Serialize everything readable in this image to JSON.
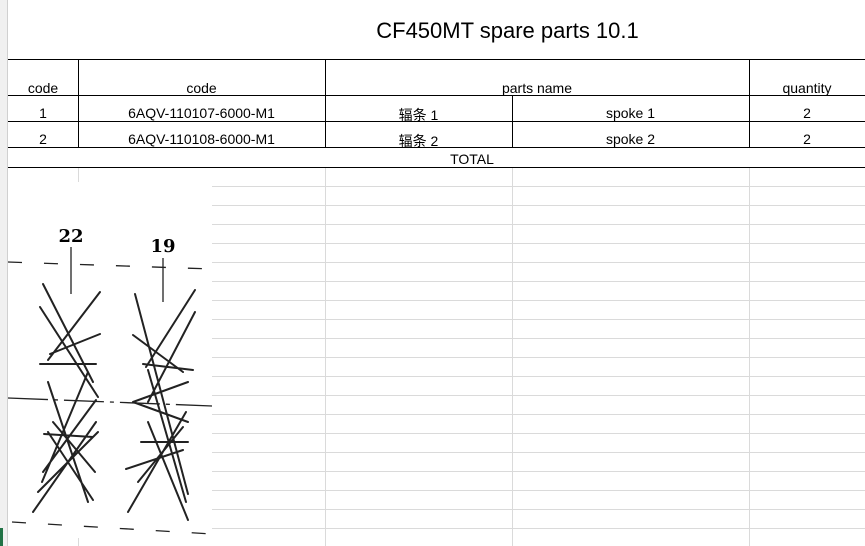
{
  "title": "CF450MT spare parts 10.1",
  "headers": {
    "code": "code",
    "code2": "code",
    "parts_name": "parts name",
    "quantity": "quantity"
  },
  "rows": [
    {
      "no": "1",
      "code": "6AQV-110107-6000-M1",
      "cn": "辐条 1",
      "en": "spoke 1",
      "qty": "2"
    },
    {
      "no": "2",
      "code": "6AQV-110108-6000-M1",
      "cn": "辐条 2",
      "en": "spoke 2",
      "qty": "2"
    }
  ],
  "total": "TOTAL",
  "diagram": {
    "labels": [
      "22",
      "19"
    ]
  }
}
